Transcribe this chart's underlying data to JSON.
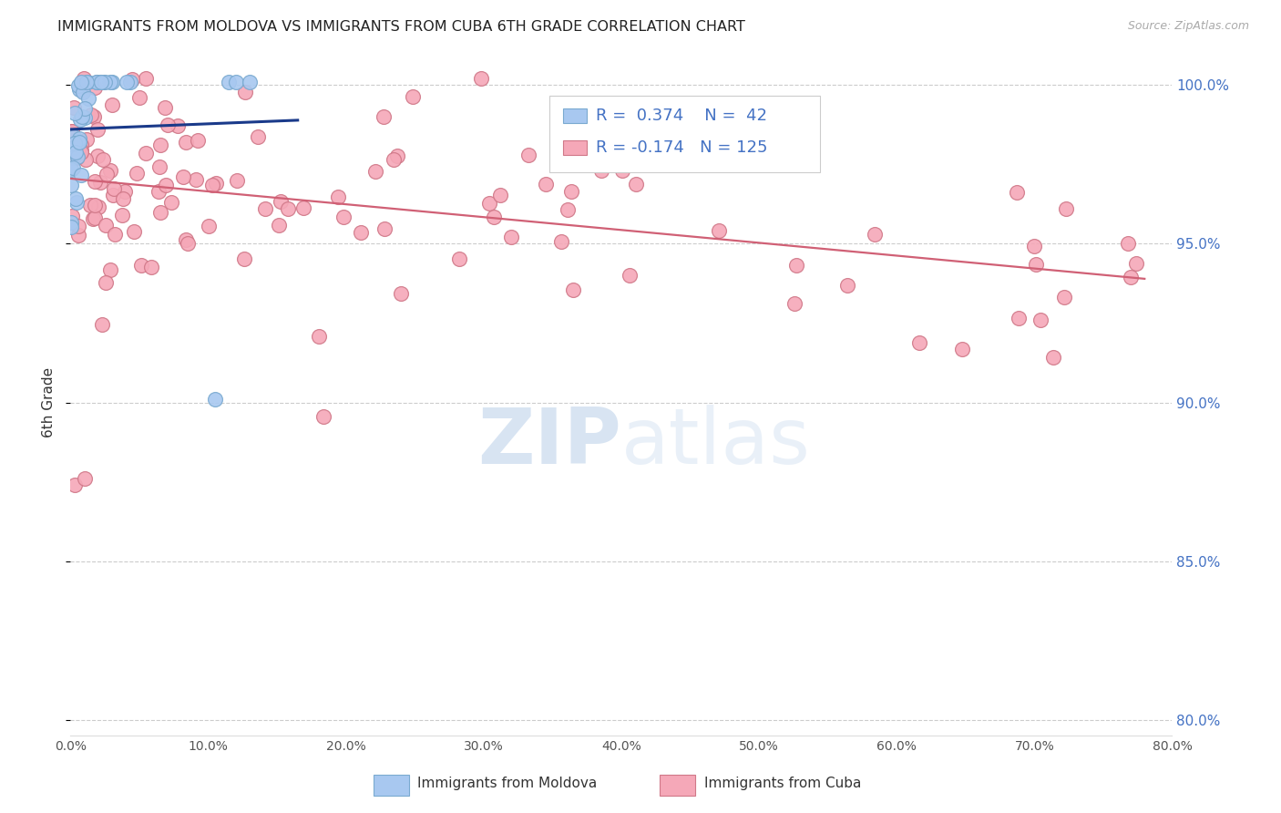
{
  "title": "IMMIGRANTS FROM MOLDOVA VS IMMIGRANTS FROM CUBA 6TH GRADE CORRELATION CHART",
  "source": "Source: ZipAtlas.com",
  "ylabel": "6th Grade",
  "xlim": [
    0.0,
    0.8
  ],
  "ylim": [
    0.795,
    1.005
  ],
  "yticks": [
    0.8,
    0.85,
    0.9,
    0.95,
    1.0
  ],
  "xticks": [
    0.0,
    0.1,
    0.2,
    0.3,
    0.4,
    0.5,
    0.6,
    0.7,
    0.8
  ],
  "moldova_color": "#a8c8f0",
  "moldova_edge": "#7aaad0",
  "moldova_line_color": "#1a3a8a",
  "cuba_color": "#f5a8b8",
  "cuba_edge": "#d07888",
  "cuba_line_color": "#d06075",
  "moldova_R": 0.374,
  "moldova_N": 42,
  "cuba_R": -0.174,
  "cuba_N": 125,
  "watermark_color": "#c8dff0",
  "background_color": "#ffffff",
  "grid_color": "#cccccc",
  "right_axis_color": "#4472c4",
  "title_color": "#222222",
  "source_color": "#aaaaaa",
  "legend_text_color": "#333333",
  "legend_value_color": "#4472c4"
}
